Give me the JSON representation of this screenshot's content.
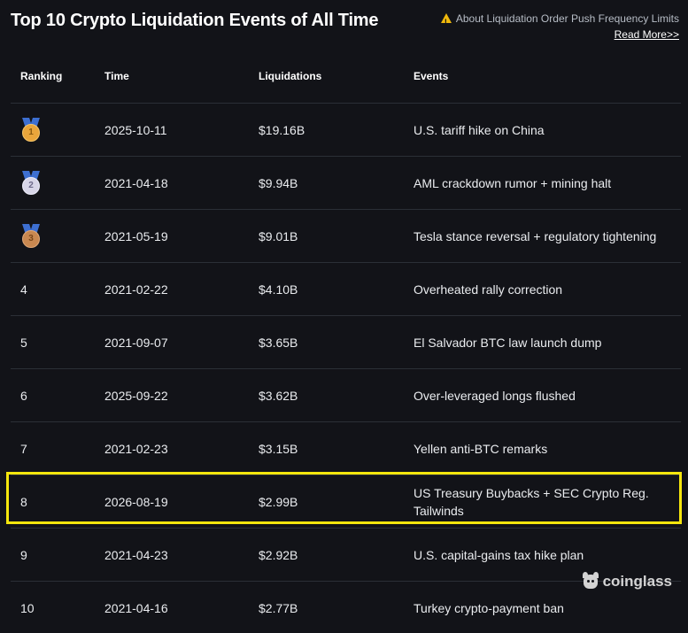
{
  "header": {
    "title": "Top 10 Crypto Liquidation Events of All Time",
    "notice_text": "About Liquidation Order Push Frequency Limits",
    "notice_icon": "warning-icon",
    "read_more": "Read More>>"
  },
  "table": {
    "columns": [
      "Ranking",
      "Time",
      "Liquidations",
      "Events"
    ],
    "rows": [
      {
        "rank": "1",
        "medal": "gold",
        "time": "2025-10-11",
        "liquidations": "$19.16B",
        "event": "U.S. tariff hike on China"
      },
      {
        "rank": "2",
        "medal": "silver",
        "time": "2021-04-18",
        "liquidations": "$9.94B",
        "event": "AML crackdown rumor + mining halt"
      },
      {
        "rank": "3",
        "medal": "bronze",
        "time": "2021-05-19",
        "liquidations": "$9.01B",
        "event": "Tesla stance reversal + regulatory tightening"
      },
      {
        "rank": "4",
        "time": "2021-02-22",
        "liquidations": "$4.10B",
        "event": "Overheated rally correction"
      },
      {
        "rank": "5",
        "time": "2021-09-07",
        "liquidations": "$3.65B",
        "event": "El Salvador BTC law launch dump"
      },
      {
        "rank": "6",
        "time": "2025-09-22",
        "liquidations": "$3.62B",
        "event": "Over-leveraged longs flushed"
      },
      {
        "rank": "7",
        "time": "2021-02-23",
        "liquidations": "$3.15B",
        "event": "Yellen anti-BTC remarks"
      },
      {
        "rank": "8",
        "time": "2026-08-19",
        "liquidations": "$2.99B",
        "event": "US Treasury Buybacks + SEC Crypto Reg. Tailwinds"
      },
      {
        "rank": "9",
        "time": "2021-04-23",
        "liquidations": "$2.92B",
        "event": "U.S. capital-gains tax hike plan"
      },
      {
        "rank": "10",
        "time": "2021-04-16",
        "liquidations": "$2.77B",
        "event": "Turkey crypto-payment ban"
      }
    ]
  },
  "watermark": {
    "text": "coinglass",
    "icon": "coinglass-logo-icon"
  },
  "colors": {
    "background": "#121318",
    "highlight": "#f5e60d",
    "warning": "#f0b90b"
  }
}
